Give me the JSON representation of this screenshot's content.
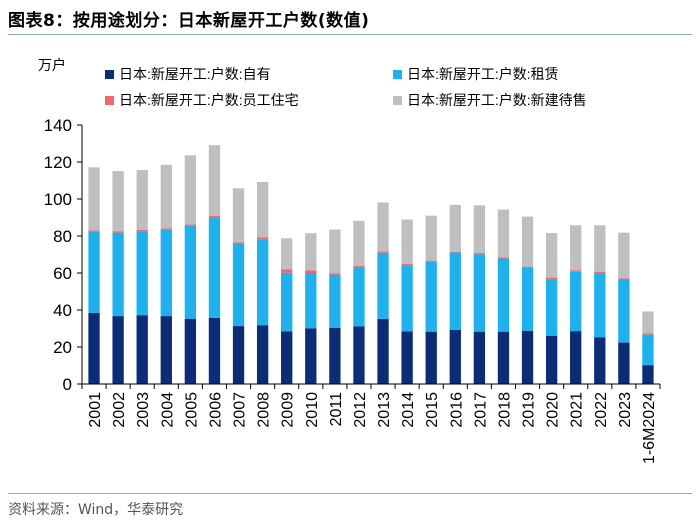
{
  "figure": {
    "title": "图表8：按用途划分：日本新屋开工户数(数值)",
    "source": "资料来源：Wind，华泰研究"
  },
  "chart_data": {
    "type": "bar",
    "stacked": true,
    "ylabel": "万户",
    "ylim": [
      0,
      140
    ],
    "yticks": [
      "0",
      "20",
      "40",
      "60",
      "80",
      "100",
      "120",
      "140"
    ],
    "grid": false,
    "legend_position": "top",
    "categories": [
      "2001",
      "2002",
      "2003",
      "2004",
      "2005",
      "2006",
      "2007",
      "2008",
      "2009",
      "2010",
      "2011",
      "2012",
      "2013",
      "2014",
      "2015",
      "2016",
      "2017",
      "2018",
      "2019",
      "2020",
      "2021",
      "2022",
      "2023",
      "1-6M2024"
    ],
    "series": [
      {
        "name": "日本:新屋开工:户数:自有",
        "color": "#0b2d78",
        "values": [
          38.5,
          36.7,
          37.2,
          36.7,
          35.3,
          35.8,
          31.3,
          31.8,
          28.4,
          30.1,
          30.3,
          31.2,
          35.2,
          28.5,
          28.3,
          29.2,
          28.3,
          28.3,
          28.8,
          26.1,
          28.6,
          25.3,
          22.4,
          10.2
        ]
      },
      {
        "name": "日本:新屋开工:户数:租赁",
        "color": "#1eb1f0",
        "values": [
          43.8,
          45.1,
          45.3,
          46.7,
          50.2,
          54.4,
          44.4,
          46.5,
          31.7,
          29.9,
          28.8,
          32.1,
          35.7,
          35.7,
          37.8,
          41.9,
          41.8,
          39.5,
          34.2,
          30.6,
          32.1,
          34.6,
          34.1,
          16.5
        ]
      },
      {
        "name": "日本:新屋开工:户数:员工住宅",
        "color": "#f06868",
        "values": [
          0.8,
          0.8,
          0.8,
          0.7,
          0.8,
          0.8,
          0.9,
          0.9,
          1.8,
          1.5,
          0.8,
          0.5,
          0.8,
          0.8,
          0.6,
          0.3,
          0.8,
          0.6,
          0.4,
          0.8,
          0.8,
          0.8,
          0.6,
          0.6
        ]
      },
      {
        "name": "日本:新屋开工:户数:新建待售",
        "color": "#bfbfbf",
        "values": [
          34.0,
          32.5,
          32.4,
          34.4,
          37.3,
          38.1,
          29.2,
          30.0,
          16.9,
          20.0,
          23.6,
          24.4,
          26.4,
          23.9,
          24.3,
          25.4,
          25.7,
          25.9,
          27.1,
          24.1,
          24.3,
          25.1,
          24.7,
          11.9
        ]
      }
    ]
  }
}
